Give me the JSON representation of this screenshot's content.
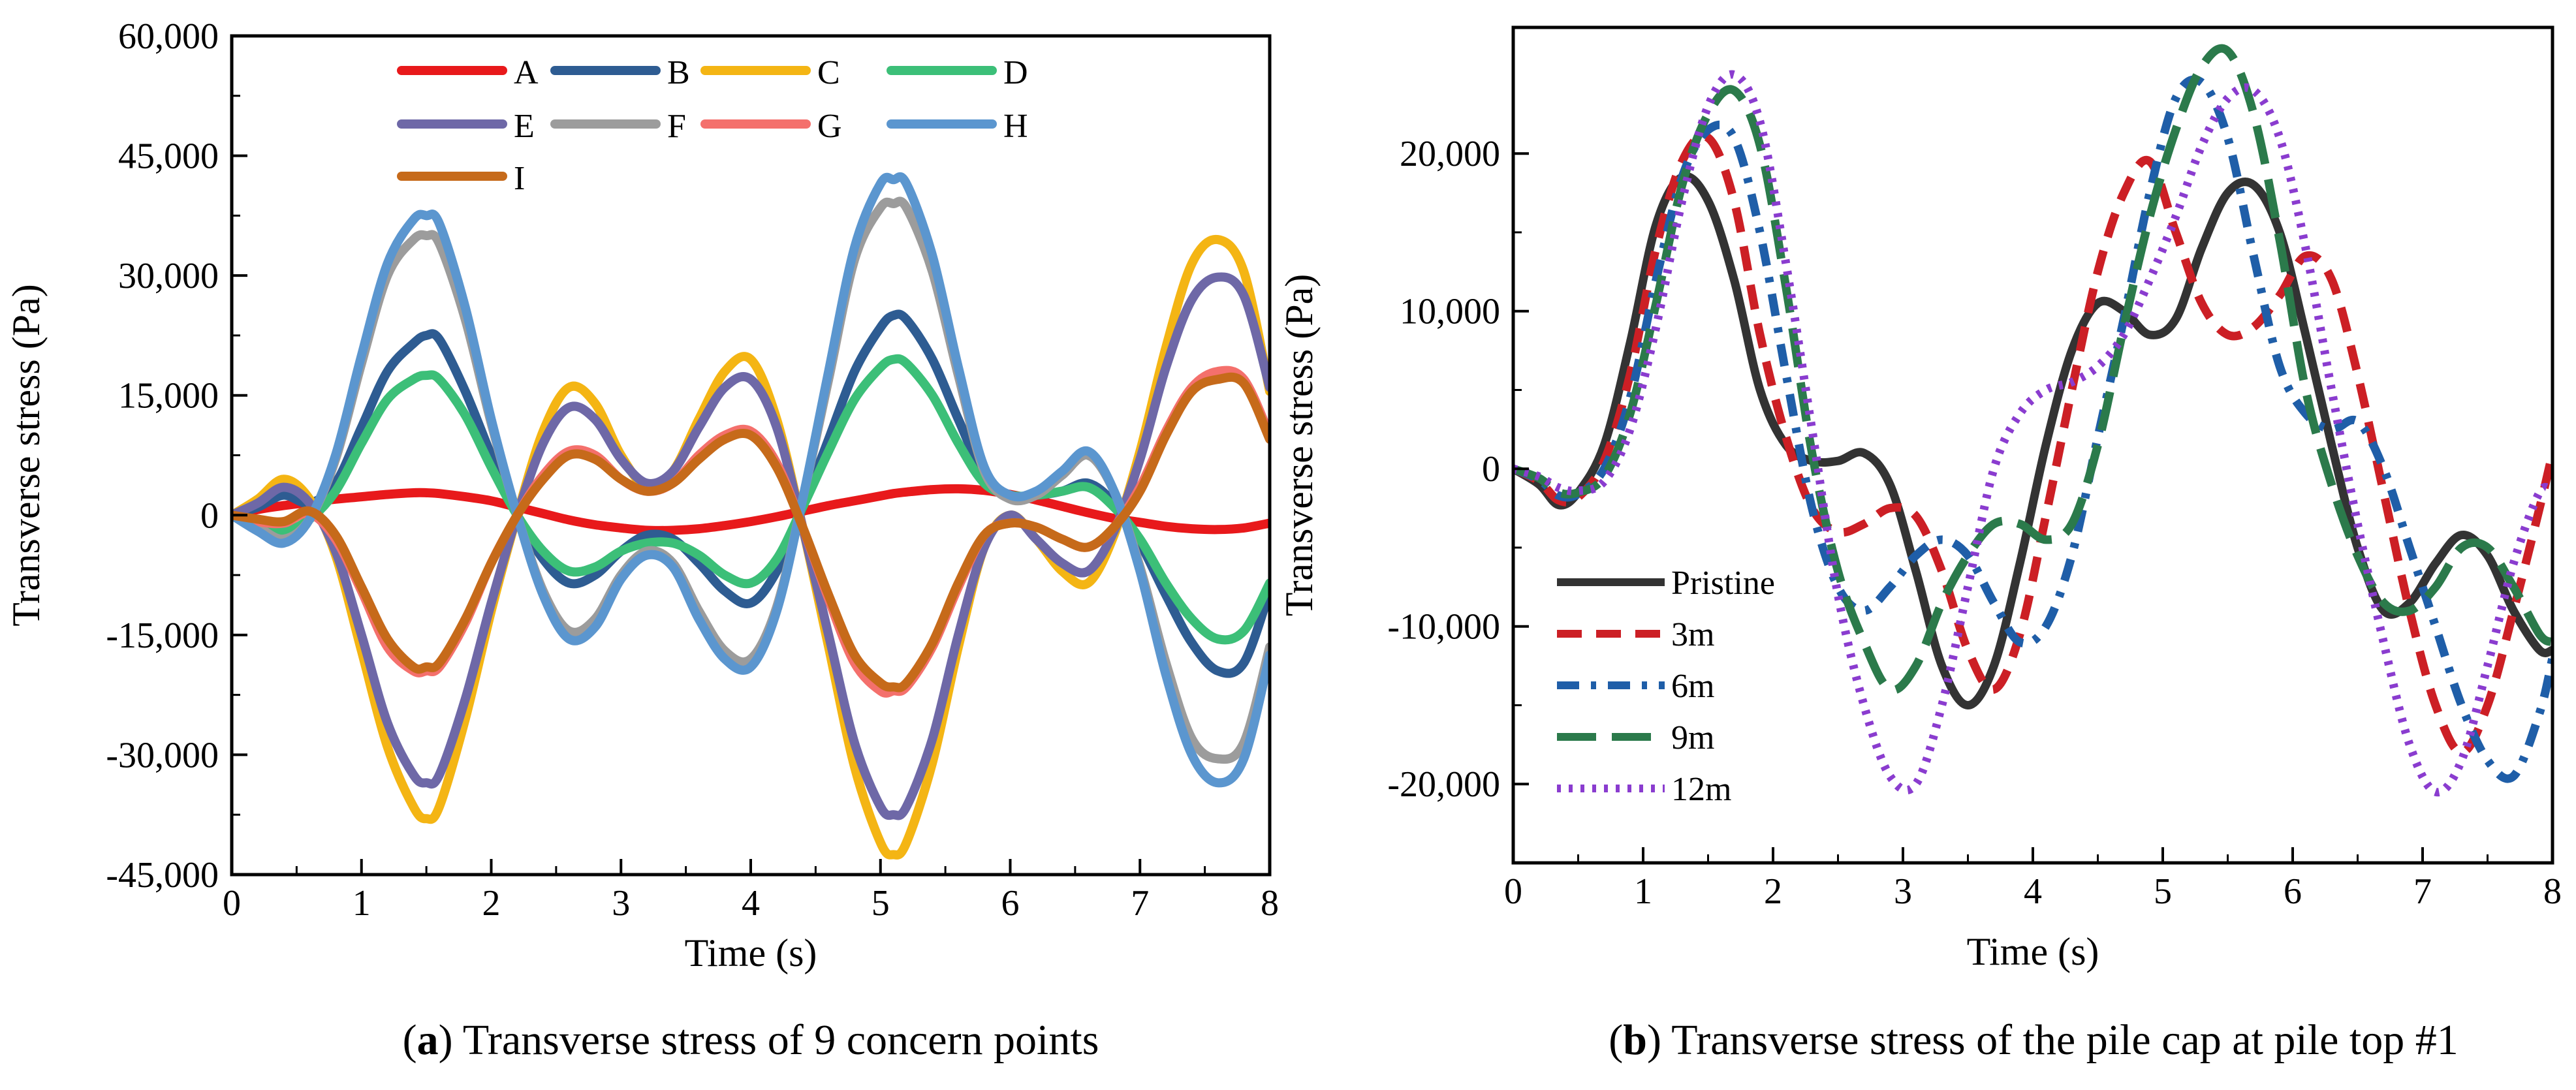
{
  "chart_data": [
    {
      "type": "line",
      "panel": "a",
      "caption_prefix": "(",
      "caption_letter": "a",
      "caption_suffix": ") Transverse stress of 9 concern points",
      "xlabel": "Time (s)",
      "ylabel": "Transverse stress (Pa)",
      "xlim": [
        0,
        8
      ],
      "ylim": [
        -45000,
        60000
      ],
      "xticks": [
        0,
        1,
        2,
        3,
        4,
        5,
        6,
        7,
        8
      ],
      "xtick_labels": [
        "0",
        "1",
        "2",
        "3",
        "4",
        "5",
        "6",
        "7",
        "8"
      ],
      "yticks": [
        -45000,
        -30000,
        -15000,
        0,
        15000,
        30000,
        45000,
        60000
      ],
      "ytick_labels": [
        "-45,000",
        "-30,000",
        "-15,000",
        "0",
        "15,000",
        "30,000",
        "45,000",
        "60,000"
      ],
      "legend_position": "top",
      "x": [
        0,
        0.2,
        0.4,
        0.6,
        0.8,
        1.0,
        1.2,
        1.4,
        1.5,
        1.6,
        1.8,
        2.0,
        2.2,
        2.4,
        2.6,
        2.8,
        3.0,
        3.2,
        3.4,
        3.6,
        3.8,
        4.0,
        4.2,
        4.4,
        4.6,
        4.8,
        5.0,
        5.1,
        5.2,
        5.4,
        5.6,
        5.8,
        6.0,
        6.2,
        6.4,
        6.6,
        6.8,
        7.0,
        7.2,
        7.4,
        7.6,
        7.8,
        8.0
      ],
      "series": [
        {
          "name": "A",
          "color": "#e8191b",
          "values": [
            0,
            700,
            1200,
            1600,
            2000,
            2300,
            2600,
            2800,
            2800,
            2700,
            2300,
            1800,
            1000,
            200,
            -600,
            -1200,
            -1600,
            -1900,
            -1900,
            -1700,
            -1300,
            -800,
            -200,
            500,
            1200,
            1800,
            2400,
            2700,
            2900,
            3200,
            3300,
            3100,
            2600,
            1900,
            1100,
            300,
            -400,
            -900,
            -1400,
            -1700,
            -1800,
            -1600,
            -1000
          ]
        },
        {
          "name": "B",
          "color": "#2e5c92",
          "values": [
            0,
            1000,
            2500,
            1500,
            4000,
            11000,
            18000,
            21500,
            22500,
            22000,
            15500,
            7500,
            0,
            -5500,
            -8500,
            -7500,
            -4500,
            -2500,
            -3000,
            -6000,
            -9500,
            -11000,
            -7000,
            1000,
            9500,
            18000,
            23500,
            25000,
            24500,
            19500,
            12000,
            5000,
            2500,
            2500,
            3000,
            4000,
            1500,
            -3500,
            -10000,
            -16000,
            -19500,
            -18500,
            -9500
          ]
        },
        {
          "name": "C",
          "color": "#f4b514",
          "values": [
            0,
            2000,
            4500,
            2000,
            -5000,
            -17000,
            -29000,
            -36500,
            -38000,
            -36500,
            -25500,
            -12000,
            0,
            10500,
            16000,
            14000,
            7500,
            3500,
            5500,
            12000,
            18000,
            19500,
            12000,
            -1500,
            -16500,
            -31500,
            -41000,
            -42500,
            -41000,
            -31000,
            -16500,
            -4000,
            0,
            -3000,
            -7000,
            -8500,
            -2500,
            8000,
            21000,
            31500,
            34500,
            30500,
            15500
          ]
        },
        {
          "name": "D",
          "color": "#3cbf78",
          "values": [
            0,
            -1000,
            -2000,
            -500,
            3000,
            9000,
            14500,
            17000,
            17500,
            17000,
            12500,
            6000,
            0,
            -4500,
            -7000,
            -6500,
            -4500,
            -3500,
            -3500,
            -5000,
            -7500,
            -8500,
            -5500,
            1000,
            8000,
            14500,
            18500,
            19500,
            19000,
            15000,
            9000,
            4000,
            2500,
            2500,
            3000,
            3500,
            1000,
            -3000,
            -8500,
            -13000,
            -15500,
            -14500,
            -8500
          ]
        },
        {
          "name": "E",
          "color": "#6e68a7",
          "values": [
            0,
            1500,
            3500,
            1500,
            -4500,
            -15000,
            -26000,
            -32500,
            -33500,
            -32500,
            -23000,
            -11000,
            0,
            9000,
            13500,
            12000,
            7000,
            4000,
            5500,
            11000,
            16000,
            17000,
            11000,
            -1500,
            -15000,
            -28500,
            -36500,
            -37500,
            -36500,
            -28000,
            -15000,
            -4000,
            0,
            -3000,
            -6000,
            -7000,
            -2000,
            7000,
            18500,
            27000,
            29800,
            27500,
            16000
          ]
        },
        {
          "name": "F",
          "color": "#9c9c9c",
          "values": [
            0,
            -1500,
            -3000,
            -500,
            7000,
            19000,
            30000,
            34500,
            35000,
            34000,
            24500,
            11500,
            0,
            -9500,
            -14500,
            -13000,
            -7500,
            -4500,
            -6000,
            -12000,
            -17000,
            -18000,
            -11500,
            2000,
            17000,
            32000,
            38500,
            39000,
            38500,
            30500,
            17500,
            5500,
            2000,
            2500,
            5000,
            7500,
            3000,
            -6500,
            -18500,
            -28000,
            -30500,
            -28500,
            -16500
          ]
        },
        {
          "name": "G",
          "color": "#f4706c",
          "values": [
            0,
            -800,
            -1000,
            200,
            -3000,
            -9500,
            -16500,
            -19500,
            -19500,
            -19000,
            -13500,
            -6000,
            0,
            5000,
            8000,
            7500,
            4500,
            3000,
            4000,
            7500,
            10000,
            10500,
            6500,
            -1500,
            -10500,
            -18500,
            -22000,
            -22000,
            -21500,
            -16500,
            -9000,
            -2500,
            -1000,
            -1500,
            -3000,
            -4000,
            -1500,
            3500,
            10500,
            16000,
            18000,
            17000,
            10000
          ]
        },
        {
          "name": "H",
          "color": "#5b96cf",
          "values": [
            0,
            -2000,
            -3500,
            -500,
            7500,
            20000,
            31500,
            37000,
            37500,
            36500,
            26000,
            12000,
            0,
            -10000,
            -15500,
            -14000,
            -8000,
            -5000,
            -6500,
            -13000,
            -18000,
            -19000,
            -12000,
            2000,
            18000,
            33500,
            41500,
            42000,
            41500,
            32500,
            18500,
            6000,
            2500,
            3000,
            5500,
            8000,
            3000,
            -7000,
            -20000,
            -30000,
            -33500,
            -30500,
            -17500
          ]
        },
        {
          "name": "I",
          "color": "#c66a1a",
          "values": [
            0,
            -500,
            -800,
            500,
            -2500,
            -9000,
            -15500,
            -19000,
            -19000,
            -18500,
            -13000,
            -6000,
            0,
            4500,
            7500,
            7000,
            4500,
            3000,
            4000,
            7000,
            9500,
            10000,
            6000,
            -1500,
            -10000,
            -17500,
            -21000,
            -21500,
            -21000,
            -16000,
            -8500,
            -2500,
            -1000,
            -1500,
            -3000,
            -4000,
            -1500,
            3000,
            10000,
            15500,
            17000,
            16500,
            9500
          ]
        }
      ]
    },
    {
      "type": "line",
      "panel": "b",
      "caption_prefix": "(",
      "caption_letter": "b",
      "caption_suffix": ") Transverse stress of the pile cap at pile top #1",
      "xlabel": "Time (s)",
      "ylabel": "Transverse stress (Pa)",
      "xlim": [
        0,
        8
      ],
      "ylim": [
        -25000,
        28000
      ],
      "xticks": [
        0,
        1,
        2,
        3,
        4,
        5,
        6,
        7,
        8
      ],
      "xtick_labels": [
        "0",
        "1",
        "2",
        "3",
        "4",
        "5",
        "6",
        "7",
        "8"
      ],
      "yticks": [
        -20000,
        -10000,
        0,
        10000,
        20000
      ],
      "ytick_labels": [
        "-20,000",
        "-10,000",
        "0",
        "10,000",
        "20,000"
      ],
      "legend_position": "bottom-left",
      "x": [
        0,
        0.2,
        0.35,
        0.5,
        0.7,
        0.9,
        1.1,
        1.3,
        1.5,
        1.7,
        1.9,
        2.1,
        2.3,
        2.5,
        2.7,
        2.9,
        3.1,
        3.3,
        3.5,
        3.7,
        3.9,
        4.1,
        4.3,
        4.5,
        4.7,
        4.9,
        5.1,
        5.3,
        5.5,
        5.7,
        5.9,
        6.1,
        6.3,
        6.5,
        6.7,
        6.9,
        7.1,
        7.3,
        7.5,
        7.7,
        7.9,
        8.0
      ],
      "series": [
        {
          "name": "Pristine",
          "color": "#333333",
          "dash": "solid",
          "values": [
            0,
            -1000,
            -2300,
            -1500,
            1500,
            8000,
            15500,
            18500,
            17000,
            12000,
            5000,
            1500,
            500,
            500,
            1000,
            -1000,
            -6500,
            -12500,
            -15000,
            -12500,
            -6000,
            1500,
            7500,
            10500,
            10000,
            8500,
            9500,
            14000,
            17500,
            18000,
            15000,
            8500,
            1500,
            -5000,
            -9000,
            -8500,
            -6000,
            -4200,
            -5500,
            -9000,
            -11500,
            -11500
          ]
        },
        {
          "name": "3m",
          "color": "#cc1f25",
          "dash": "38 22",
          "values": [
            0,
            -800,
            -2000,
            -1800,
            500,
            6000,
            14000,
            19500,
            21000,
            17000,
            8500,
            2000,
            -2500,
            -4000,
            -3500,
            -2500,
            -3000,
            -6500,
            -11500,
            -14000,
            -10500,
            -3000,
            5000,
            12500,
            17500,
            19500,
            15000,
            10500,
            8500,
            9000,
            11000,
            13500,
            12000,
            6000,
            -1500,
            -9000,
            -15000,
            -18000,
            -15000,
            -9000,
            -2500,
            1000
          ]
        },
        {
          "name": "6m",
          "color": "#1f5ea8",
          "dash": "34 18 8 18",
          "values": [
            0,
            -700,
            -1700,
            -1600,
            0,
            4500,
            12000,
            18500,
            21500,
            21000,
            15000,
            6000,
            -2500,
            -7500,
            -9000,
            -7500,
            -5500,
            -4500,
            -5500,
            -8500,
            -11000,
            -10000,
            -5500,
            2000,
            9500,
            17500,
            23500,
            24500,
            21000,
            13500,
            6500,
            3500,
            2500,
            3000,
            0,
            -5000,
            -10000,
            -15000,
            -18500,
            -19500,
            -15500,
            -12000
          ]
        },
        {
          "name": "9m",
          "color": "#2b7a4b",
          "dash": "60 24",
          "values": [
            0,
            -600,
            -1500,
            -1500,
            -500,
            3500,
            10500,
            18000,
            22500,
            24000,
            20500,
            11500,
            1000,
            -6500,
            -11000,
            -14000,
            -12500,
            -8500,
            -5500,
            -3500,
            -3500,
            -4500,
            -3500,
            1500,
            9000,
            16000,
            21500,
            25500,
            26500,
            22500,
            14500,
            5000,
            -1000,
            -5500,
            -8500,
            -9000,
            -7500,
            -5000,
            -5000,
            -7500,
            -10500,
            -11000
          ]
        },
        {
          "name": "12m",
          "color": "#8a3ccf",
          "dash": "6 12",
          "values": [
            0,
            -500,
            -1200,
            -1400,
            -800,
            2500,
            9000,
            17000,
            23000,
            25000,
            22000,
            13000,
            2500,
            -8000,
            -15000,
            -19500,
            -20000,
            -15000,
            -7500,
            0,
            3500,
            5000,
            5500,
            6500,
            8500,
            12000,
            16000,
            20500,
            23500,
            24000,
            21000,
            14000,
            5000,
            -3500,
            -11000,
            -17500,
            -20500,
            -18500,
            -12500,
            -6000,
            -1500,
            -1500
          ]
        }
      ]
    }
  ]
}
